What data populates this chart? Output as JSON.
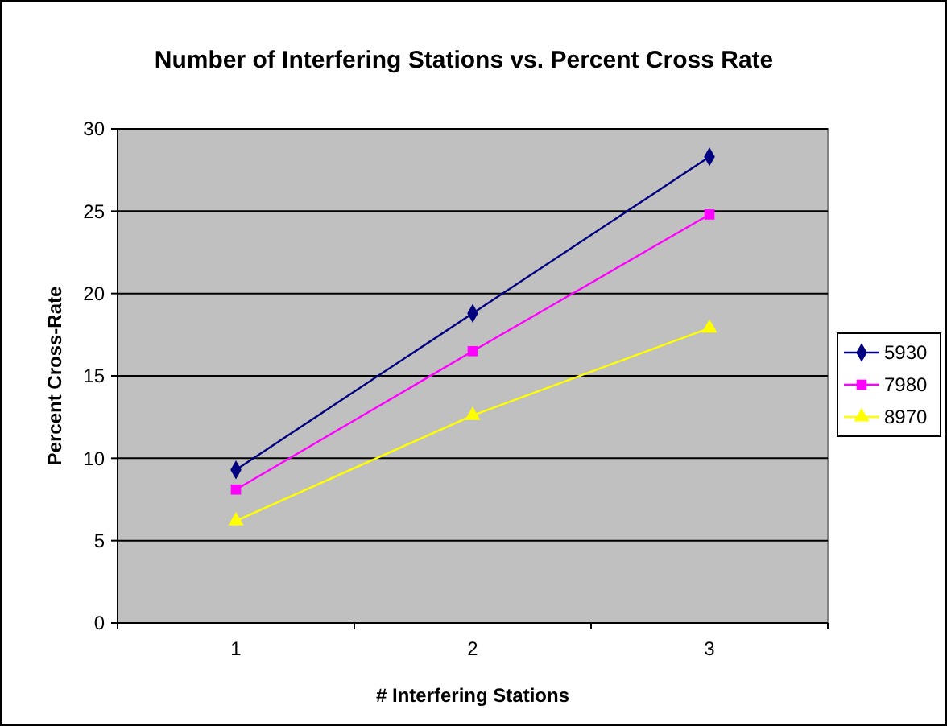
{
  "chart_data": {
    "type": "line",
    "title": "Number of Interfering Stations vs. Percent Cross Rate",
    "xlabel": "# Interfering Stations",
    "ylabel": "Percent Cross-Rate",
    "categories": [
      "1",
      "2",
      "3"
    ],
    "series": [
      {
        "name": "5930",
        "color": "#000080",
        "marker": "diamond",
        "values": [
          9.3,
          18.8,
          28.3
        ]
      },
      {
        "name": "7980",
        "color": "#ff00ff",
        "marker": "square",
        "values": [
          8.1,
          16.5,
          24.8
        ]
      },
      {
        "name": "8970",
        "color": "#ffff00",
        "marker": "triangle",
        "values": [
          6.2,
          12.6,
          17.9
        ]
      }
    ],
    "ylim": [
      0,
      30
    ],
    "yticks": [
      0,
      5,
      10,
      15,
      20,
      25,
      30
    ],
    "grid": "y",
    "legend": "right"
  }
}
